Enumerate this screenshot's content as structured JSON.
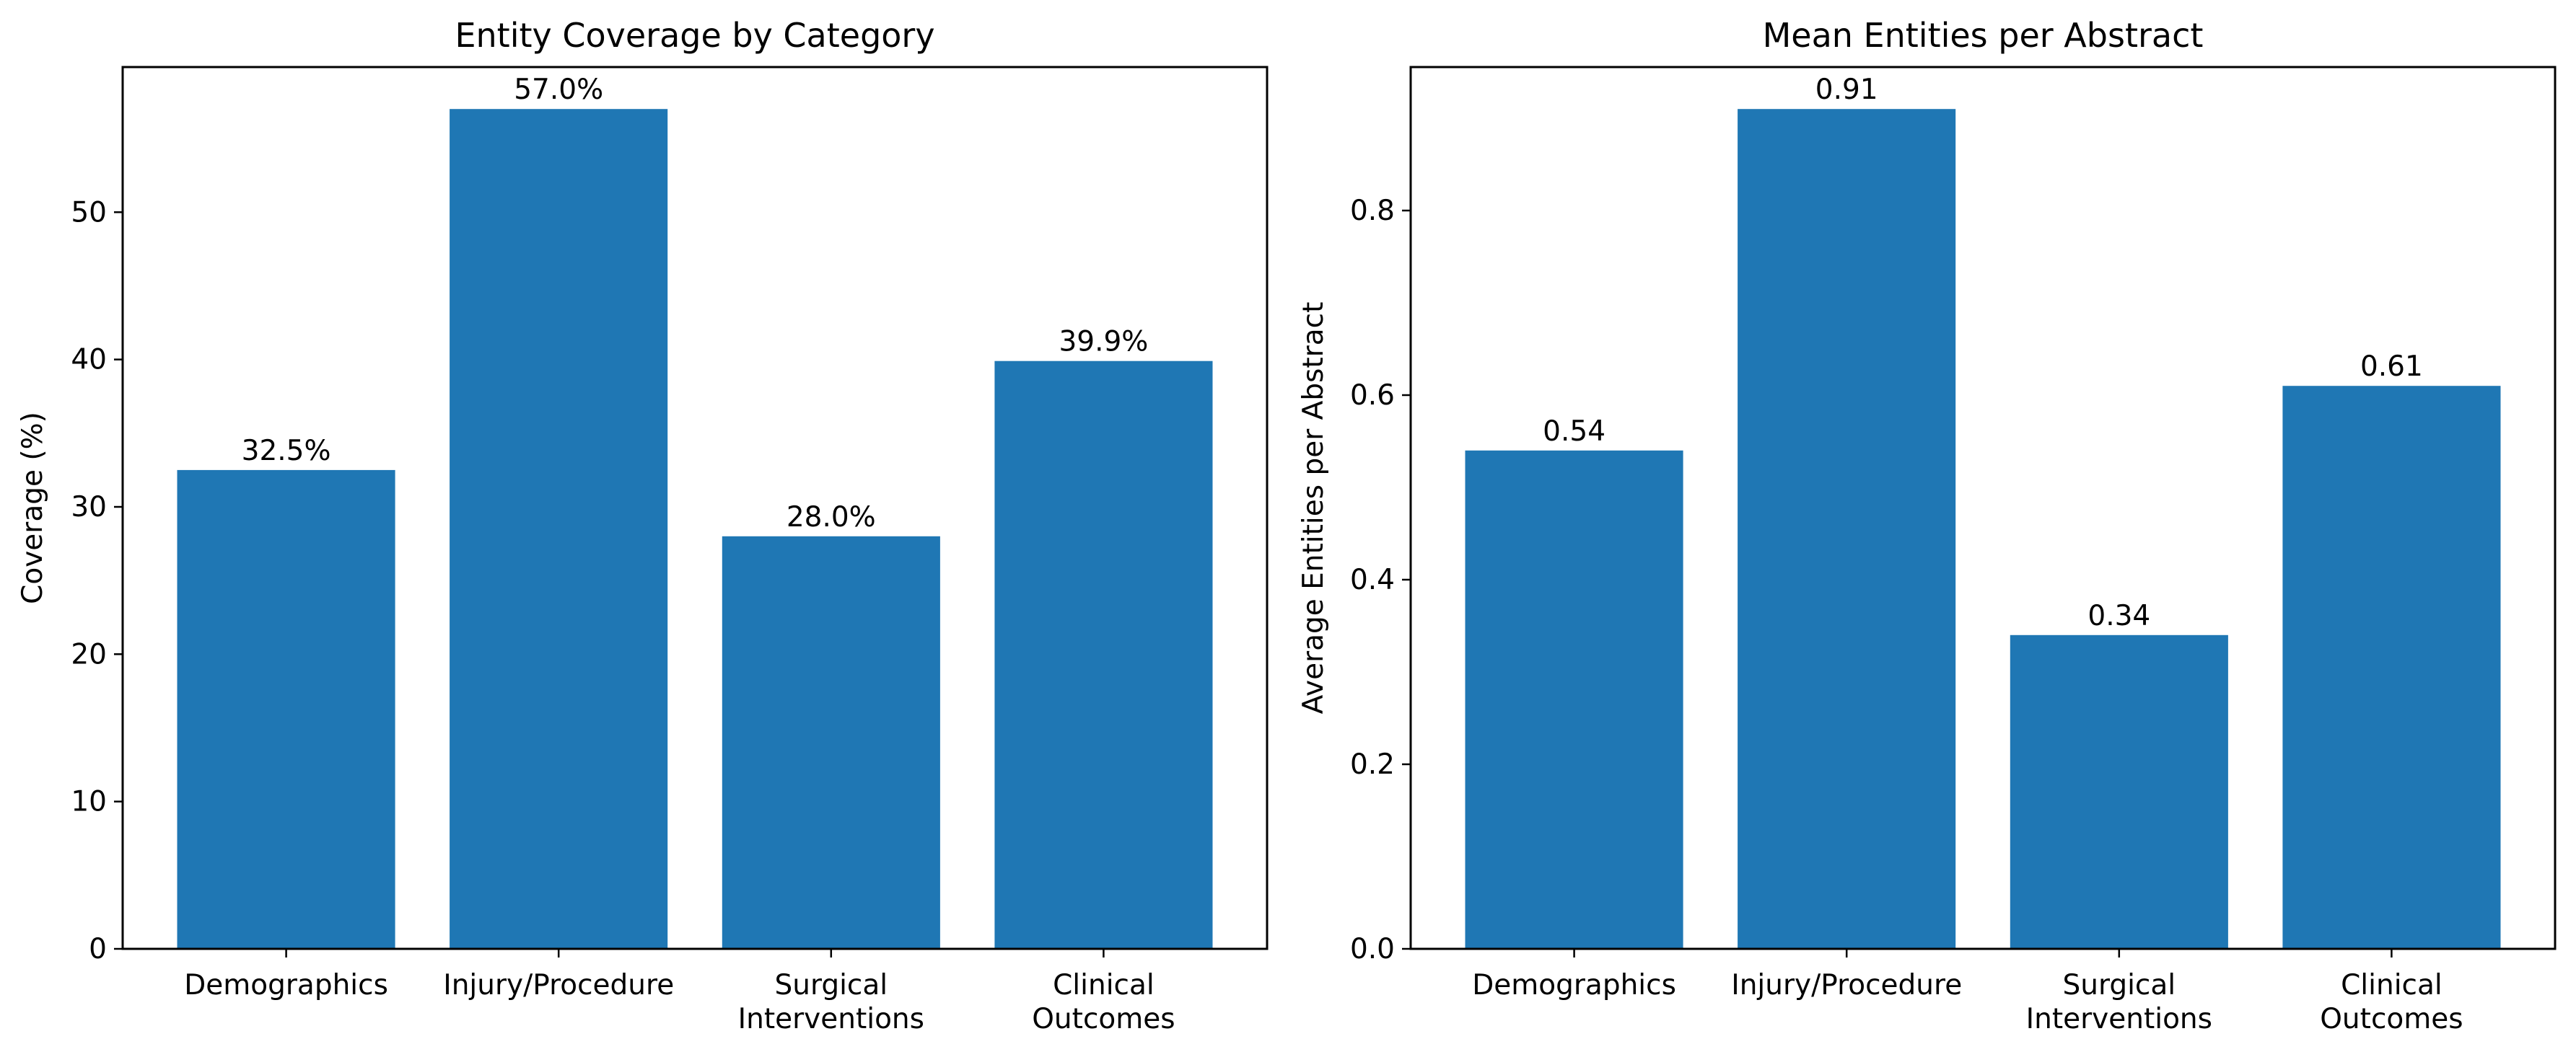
{
  "chart_data": [
    {
      "type": "bar",
      "title": "Entity Coverage by Category",
      "xlabel": "",
      "ylabel": "Coverage (%)",
      "categories": [
        "Demographics",
        "Injury/Procedure",
        "Surgical\nInterventions",
        "Clinical\nOutcomes"
      ],
      "values": [
        32.5,
        57.0,
        28.0,
        39.9
      ],
      "value_labels": [
        "32.5%",
        "57.0%",
        "28.0%",
        "39.9%"
      ],
      "ylim": [
        0,
        59.85
      ],
      "yticks": [
        0,
        10,
        20,
        30,
        40,
        50
      ],
      "ytick_labels": [
        "0",
        "10",
        "20",
        "30",
        "40",
        "50"
      ],
      "grid": false,
      "bar_color": "#1f77b4"
    },
    {
      "type": "bar",
      "title": "Mean Entities per Abstract",
      "xlabel": "",
      "ylabel": "Average Entities per Abstract",
      "categories": [
        "Demographics",
        "Injury/Procedure",
        "Surgical\nInterventions",
        "Clinical\nOutcomes"
      ],
      "values": [
        0.54,
        0.91,
        0.34,
        0.61
      ],
      "value_labels": [
        "0.54",
        "0.91",
        "0.34",
        "0.61"
      ],
      "ylim": [
        0,
        0.9555
      ],
      "yticks": [
        0.0,
        0.2,
        0.4,
        0.6,
        0.8
      ],
      "ytick_labels": [
        "0.0",
        "0.2",
        "0.4",
        "0.6",
        "0.8"
      ],
      "grid": false,
      "bar_color": "#1f77b4"
    }
  ]
}
